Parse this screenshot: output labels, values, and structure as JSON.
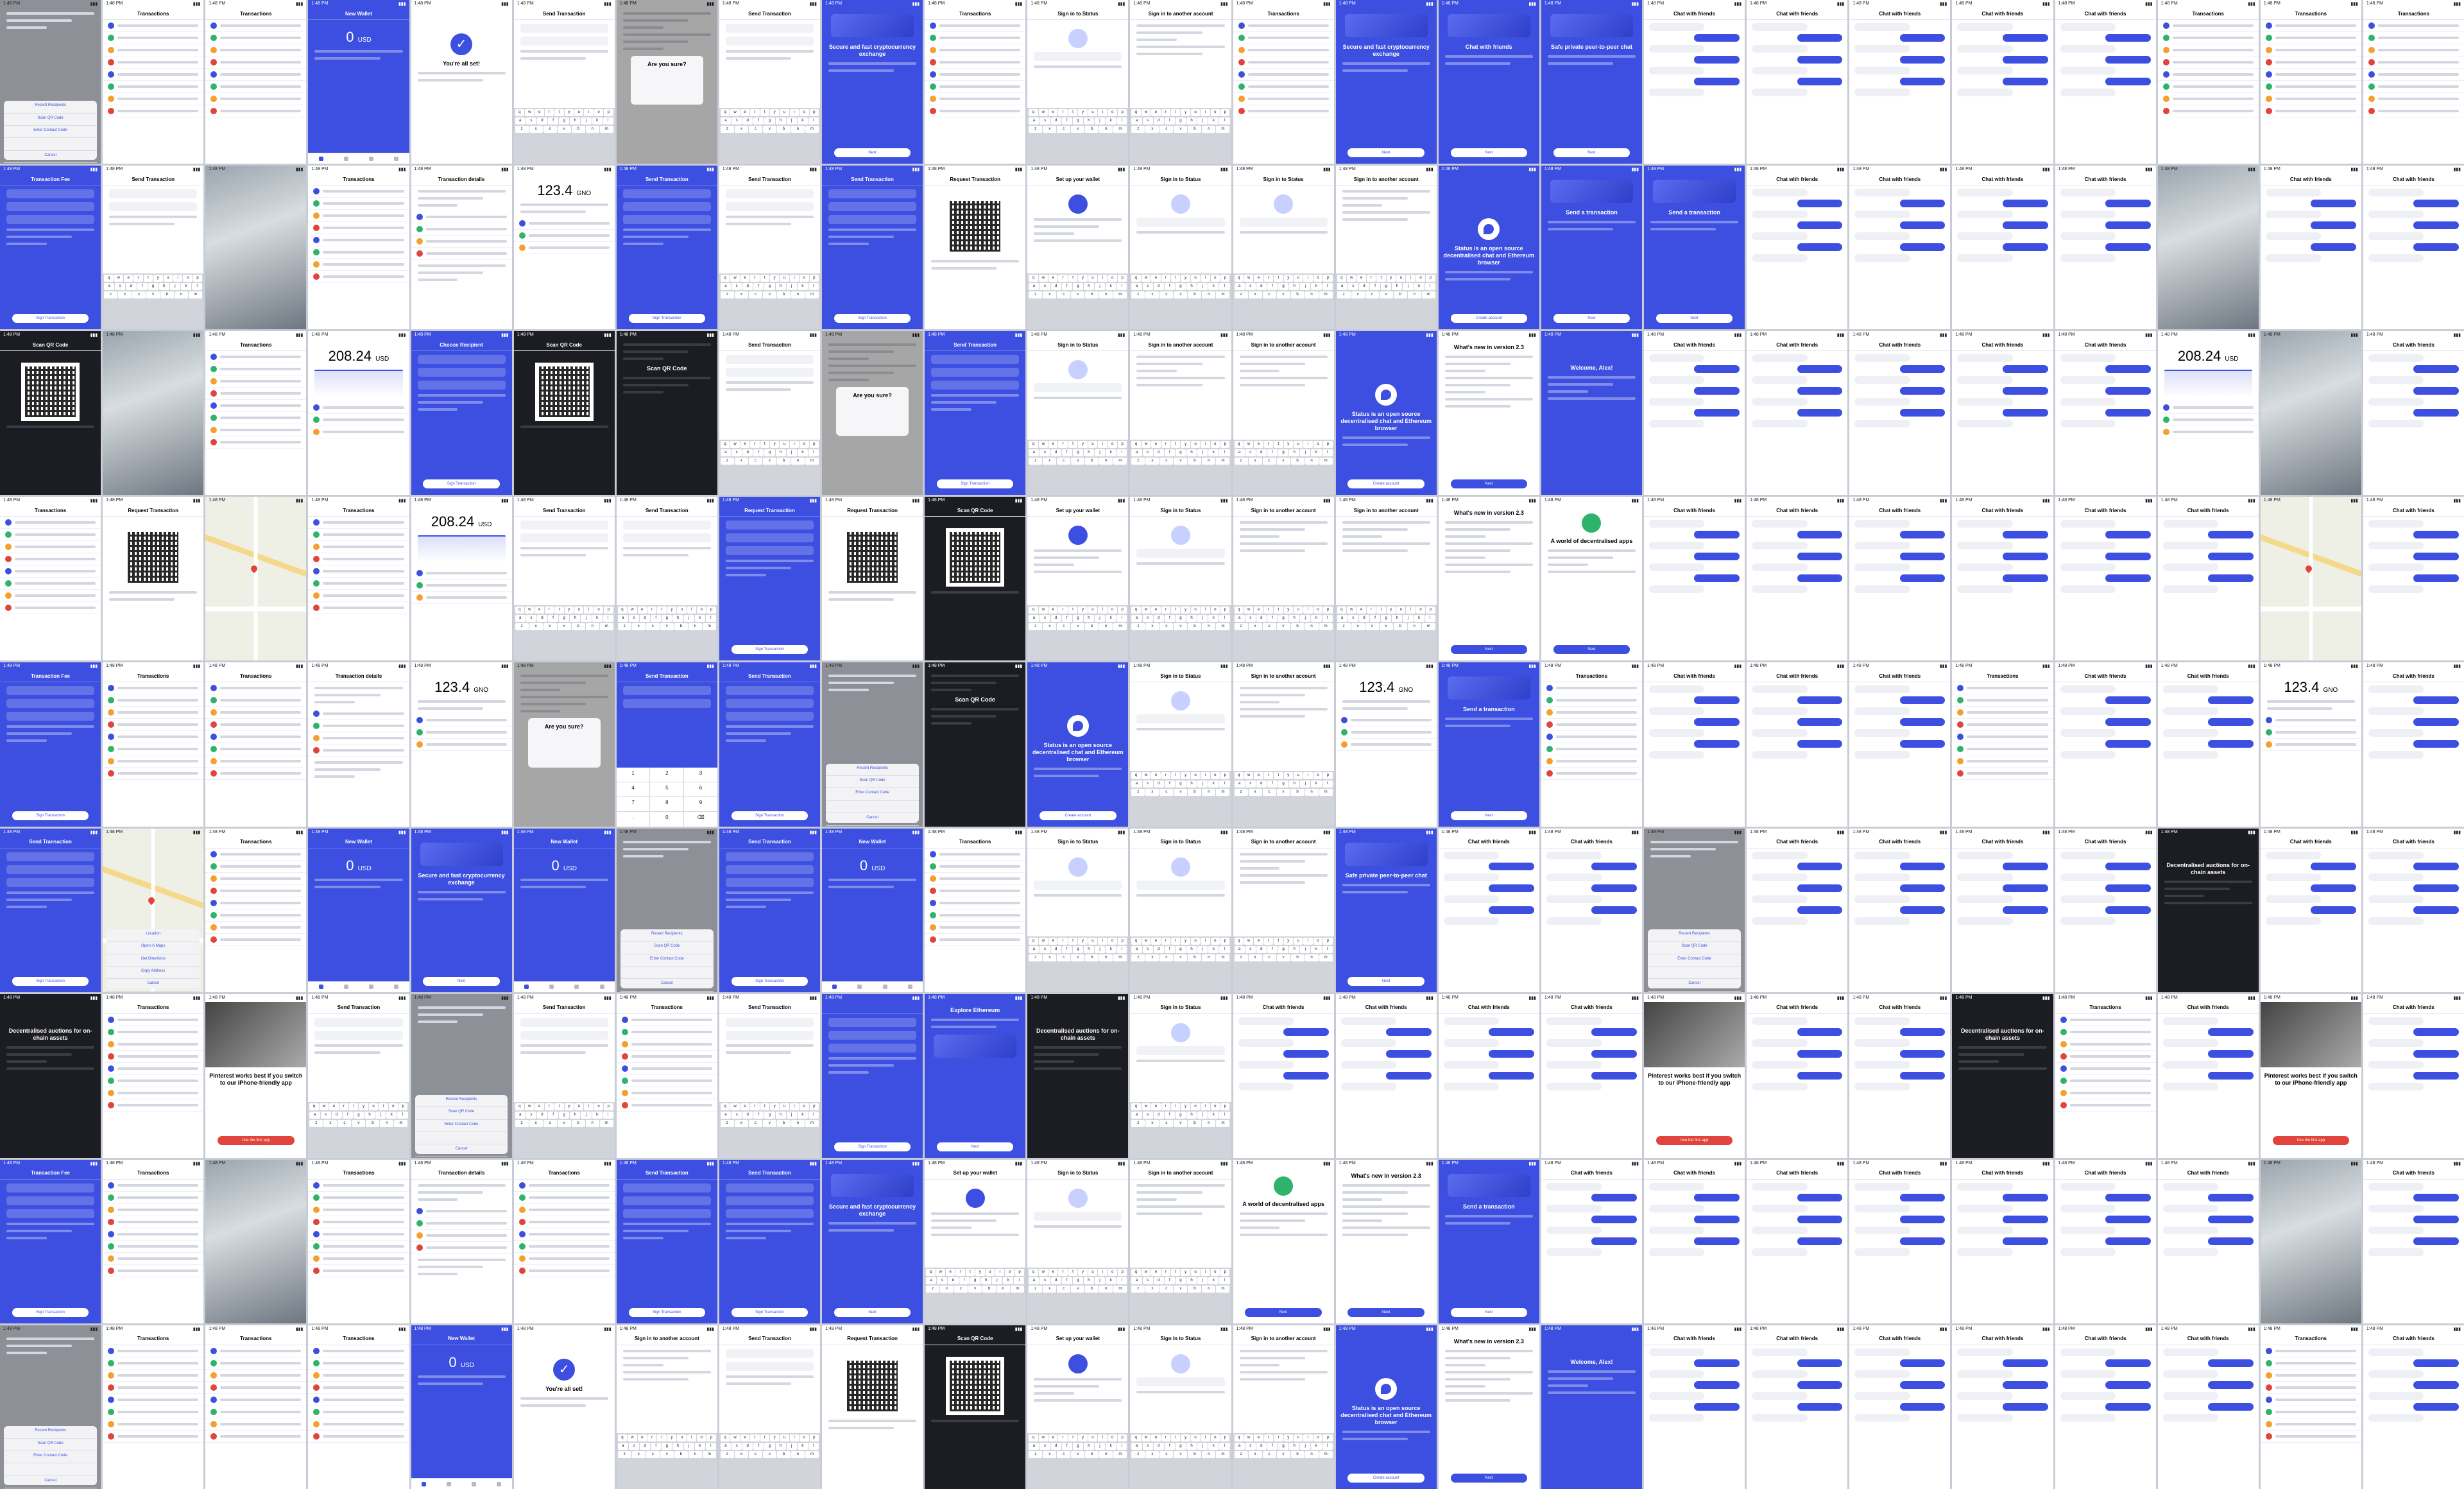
{
  "texts": {
    "status_time": "1:48 PM",
    "secure_title": "Secure and fast cryptocurrency exchange",
    "chat_title": "Chat with friends",
    "private_title": "Safe private peer-to-peer chat",
    "send_title": "Send a transaction",
    "status_open": "Status is an open source decentralised chat and Ethereum browser",
    "whats_new": "What's new in version 2.3",
    "welcome": "Welcome, Alex!",
    "world_apps": "A world of decentralised apps",
    "all_set": "You're all set!",
    "sign_in": "Sign in to Status",
    "sign_in_other": "Sign in to another account",
    "set_up_wallet": "Set up your wallet",
    "send_transaction": "Send Transaction",
    "request_transaction": "Request Transaction",
    "transactions": "Transactions",
    "transaction_details": "Transaction details",
    "transaction_fee": "Transaction Fee",
    "choose_recipient": "Choose Recipient",
    "scan_qr": "Scan QR Code",
    "recent_recipients": "Recent Recipients",
    "enter_contact_code": "Enter Contact Code",
    "cancel": "Cancel",
    "copy_hash": "Copy transaction hash",
    "open_etherscan": "Open on Etherscan",
    "amount_zero": "0",
    "usd": "USD",
    "amount_gno": "123.4",
    "gno": "GNO",
    "amount_usd": "208.24",
    "new_wallet": "New Wallet",
    "explore_ethereum": "Explore Ethereum",
    "create_account": "Create account",
    "decentralised_auctions": "Decentralised auctions for on-chain assets",
    "pinterest": "Pinterest works best if you switch to our iPhone-friendly app",
    "use_first_app": "Use the first app",
    "are_you_sure": "Are you sure?",
    "check": "✓",
    "next": "Next",
    "sign_transaction": "Sign Transaction",
    "location": "Location",
    "open_in_maps": "Open in Maps",
    "get_directions": "Get Directions",
    "copy_address": "Copy Address",
    "amount_tilde": "~",
    "amount_1243": "12.43",
    "amount_234": "2.34",
    "amount_00094": "0.00094"
  },
  "colors": {
    "accent": "#3c4fe0",
    "background": "#ffffff",
    "dark": "#1c1d22"
  },
  "icons": [
    "qr-code-icon",
    "status-logo-icon",
    "checkmark-icon",
    "wallet-card-icon",
    "location-pin-icon",
    "chat-bubble-icon"
  ]
}
